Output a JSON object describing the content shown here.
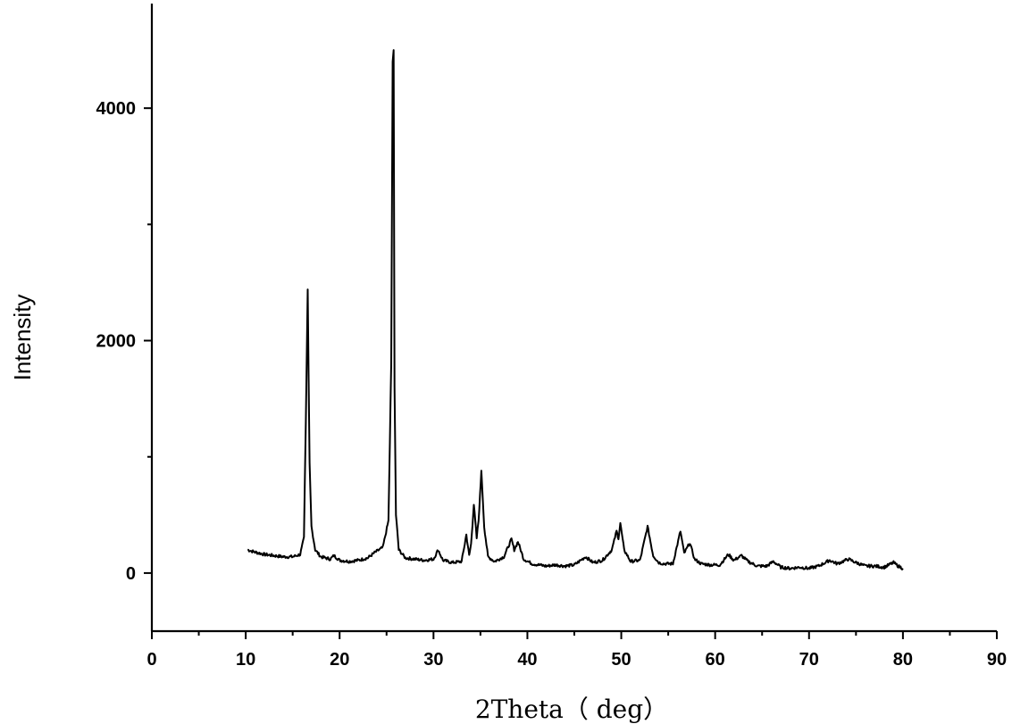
{
  "chart_data": {
    "type": "line",
    "title": "",
    "xlabel": "2Theta（ deg）",
    "ylabel": "Intensity",
    "xlim": [
      0,
      90
    ],
    "ylim": [
      -500,
      4900
    ],
    "x_ticks": [
      0,
      10,
      20,
      30,
      40,
      50,
      60,
      70,
      80,
      90
    ],
    "x_tick_labels": [
      "0",
      "10",
      "20",
      "30",
      "40",
      "50",
      "60",
      "70",
      "80",
      "90"
    ],
    "y_ticks": [
      0,
      2000,
      4000
    ],
    "y_tick_labels": [
      "0",
      "2000",
      "4000"
    ],
    "grid": false,
    "legend": "none",
    "line_color": "#000000",
    "peaks": [
      {
        "x": 16.6,
        "y": 2440
      },
      {
        "x": 25.75,
        "y": 4500
      },
      {
        "x": 30.5,
        "y": 200
      },
      {
        "x": 33.5,
        "y": 330
      },
      {
        "x": 34.3,
        "y": 590
      },
      {
        "x": 35.1,
        "y": 880
      },
      {
        "x": 38.3,
        "y": 290
      },
      {
        "x": 39.0,
        "y": 270
      },
      {
        "x": 46.2,
        "y": 140
      },
      {
        "x": 49.5,
        "y": 360
      },
      {
        "x": 49.9,
        "y": 430
      },
      {
        "x": 52.8,
        "y": 400
      },
      {
        "x": 56.3,
        "y": 360
      },
      {
        "x": 57.3,
        "y": 260
      },
      {
        "x": 61.4,
        "y": 160
      },
      {
        "x": 62.8,
        "y": 150
      },
      {
        "x": 66.2,
        "y": 100
      },
      {
        "x": 72.2,
        "y": 110
      },
      {
        "x": 74.2,
        "y": 120
      },
      {
        "x": 79.0,
        "y": 90
      }
    ],
    "series": [
      {
        "x": [
          10.2,
          11,
          12,
          13,
          14,
          15,
          15.8,
          16.2,
          16.4,
          16.6,
          16.8,
          17.0,
          17.4,
          18,
          19,
          19.4,
          20,
          21,
          22,
          23,
          23.8,
          24.6,
          25.2,
          25.5,
          25.65,
          25.75,
          25.85,
          26.0,
          26.3,
          27,
          28,
          29,
          30,
          30.5,
          31,
          32,
          33,
          33.5,
          33.8,
          34.0,
          34.3,
          34.6,
          34.8,
          35.1,
          35.4,
          35.8,
          36.5,
          37.5,
          38.3,
          38.6,
          39.0,
          39.6,
          40.5,
          42,
          43,
          44,
          45,
          46.2,
          47,
          48,
          49,
          49.5,
          49.7,
          49.9,
          50.3,
          51,
          52,
          52.8,
          53.4,
          54,
          54.5,
          55.5,
          56.3,
          56.7,
          57.3,
          57.8,
          58.5,
          59.5,
          60.5,
          61.4,
          62,
          62.8,
          63.5,
          64.5,
          65.5,
          66.2,
          67,
          68,
          69,
          70,
          71,
          72.2,
          73,
          74.2,
          75,
          76,
          77,
          78,
          79,
          79.5,
          80
        ],
        "y": [
          200,
          180,
          160,
          150,
          140,
          140,
          160,
          300,
          1300,
          2440,
          950,
          400,
          200,
          140,
          120,
          150,
          110,
          100,
          110,
          130,
          180,
          220,
          450,
          1800,
          4400,
          4500,
          1600,
          500,
          200,
          130,
          120,
          110,
          120,
          200,
          110,
          90,
          100,
          330,
          150,
          250,
          590,
          300,
          450,
          880,
          400,
          140,
          100,
          140,
          290,
          200,
          270,
          120,
          80,
          60,
          70,
          60,
          70,
          140,
          90,
          110,
          200,
          360,
          300,
          430,
          200,
          100,
          110,
          400,
          150,
          90,
          80,
          80,
          360,
          170,
          260,
          120,
          80,
          70,
          70,
          160,
          110,
          150,
          100,
          60,
          60,
          100,
          50,
          40,
          50,
          40,
          60,
          110,
          80,
          120,
          90,
          60,
          60,
          50,
          90,
          60,
          40
        ]
      }
    ]
  }
}
